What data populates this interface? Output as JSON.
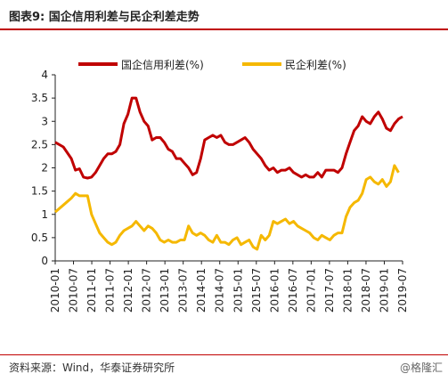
{
  "title": "图表9:  国企信用利差与民企利差走势",
  "source": "资料来源：Wind，华泰证券研究所",
  "watermark": "@格隆汇",
  "chart_data": {
    "type": "line",
    "ylim": [
      0,
      4
    ],
    "yticks": [
      "0",
      "0.5",
      "1",
      "1.5",
      "2",
      "2.5",
      "3",
      "3.5",
      "4"
    ],
    "xticks": [
      "2010-01",
      "2010-07",
      "2011-01",
      "2011-07",
      "2012-01",
      "2012-07",
      "2013-01",
      "2013-07",
      "2014-01",
      "2014-07",
      "2015-01",
      "2015-07",
      "2016-01",
      "2016-07",
      "2017-01",
      "2017-07",
      "2018-01",
      "2018-07",
      "2019-01",
      "2019-07"
    ],
    "series": [
      {
        "name": "国企信用利差(%)",
        "color": "#c00000",
        "points": [
          [
            0,
            2.55
          ],
          [
            2,
            2.45
          ],
          [
            4,
            2.2
          ],
          [
            5,
            1.95
          ],
          [
            6,
            1.98
          ],
          [
            7,
            1.8
          ],
          [
            8,
            1.78
          ],
          [
            9,
            1.8
          ],
          [
            10,
            1.9
          ],
          [
            11,
            2.05
          ],
          [
            12,
            2.2
          ],
          [
            13,
            2.3
          ],
          [
            14,
            2.3
          ],
          [
            15,
            2.35
          ],
          [
            16,
            2.5
          ],
          [
            17,
            2.95
          ],
          [
            18,
            3.15
          ],
          [
            19,
            3.5
          ],
          [
            20,
            3.5
          ],
          [
            21,
            3.2
          ],
          [
            22,
            3.0
          ],
          [
            23,
            2.9
          ],
          [
            24,
            2.6
          ],
          [
            25,
            2.65
          ],
          [
            26,
            2.65
          ],
          [
            27,
            2.55
          ],
          [
            28,
            2.4
          ],
          [
            29,
            2.35
          ],
          [
            30,
            2.2
          ],
          [
            31,
            2.2
          ],
          [
            32,
            2.1
          ],
          [
            33,
            2.0
          ],
          [
            34,
            1.85
          ],
          [
            35,
            1.9
          ],
          [
            36,
            2.2
          ],
          [
            37,
            2.6
          ],
          [
            38,
            2.65
          ],
          [
            39,
            2.7
          ],
          [
            40,
            2.65
          ],
          [
            41,
            2.7
          ],
          [
            42,
            2.55
          ],
          [
            43,
            2.5
          ],
          [
            44,
            2.5
          ],
          [
            45,
            2.55
          ],
          [
            46,
            2.6
          ],
          [
            47,
            2.65
          ],
          [
            48,
            2.55
          ],
          [
            49,
            2.4
          ],
          [
            50,
            2.3
          ],
          [
            51,
            2.2
          ],
          [
            52,
            2.05
          ],
          [
            53,
            1.95
          ],
          [
            54,
            2.0
          ],
          [
            55,
            1.9
          ],
          [
            56,
            1.95
          ],
          [
            57,
            1.95
          ],
          [
            58,
            2.0
          ],
          [
            59,
            1.9
          ],
          [
            60,
            1.85
          ],
          [
            61,
            1.8
          ],
          [
            62,
            1.85
          ],
          [
            63,
            1.8
          ],
          [
            64,
            1.8
          ],
          [
            65,
            1.9
          ],
          [
            66,
            1.8
          ],
          [
            67,
            1.95
          ],
          [
            68,
            1.95
          ],
          [
            69,
            1.95
          ],
          [
            70,
            1.9
          ],
          [
            71,
            2.0
          ],
          [
            72,
            2.3
          ],
          [
            73,
            2.55
          ],
          [
            74,
            2.8
          ],
          [
            75,
            2.9
          ],
          [
            76,
            3.1
          ],
          [
            77,
            3.0
          ],
          [
            78,
            2.95
          ],
          [
            79,
            3.1
          ],
          [
            80,
            3.2
          ],
          [
            81,
            3.05
          ],
          [
            82,
            2.85
          ],
          [
            83,
            2.8
          ],
          [
            84,
            2.95
          ],
          [
            85,
            3.05
          ],
          [
            86,
            3.1
          ]
        ]
      },
      {
        "name": "民企利差(%)",
        "color": "#f5b800",
        "points": [
          [
            0,
            1.05
          ],
          [
            2,
            1.2
          ],
          [
            4,
            1.35
          ],
          [
            5,
            1.45
          ],
          [
            6,
            1.4
          ],
          [
            7,
            1.4
          ],
          [
            8,
            1.4
          ],
          [
            9,
            1.0
          ],
          [
            10,
            0.8
          ],
          [
            11,
            0.6
          ],
          [
            12,
            0.5
          ],
          [
            13,
            0.4
          ],
          [
            14,
            0.35
          ],
          [
            15,
            0.4
          ],
          [
            16,
            0.55
          ],
          [
            17,
            0.65
          ],
          [
            18,
            0.7
          ],
          [
            19,
            0.75
          ],
          [
            20,
            0.85
          ],
          [
            21,
            0.75
          ],
          [
            22,
            0.65
          ],
          [
            23,
            0.75
          ],
          [
            24,
            0.7
          ],
          [
            25,
            0.6
          ],
          [
            26,
            0.45
          ],
          [
            27,
            0.4
          ],
          [
            28,
            0.45
          ],
          [
            29,
            0.4
          ],
          [
            30,
            0.4
          ],
          [
            31,
            0.45
          ],
          [
            32,
            0.45
          ],
          [
            33,
            0.75
          ],
          [
            34,
            0.6
          ],
          [
            35,
            0.55
          ],
          [
            36,
            0.6
          ],
          [
            37,
            0.55
          ],
          [
            38,
            0.45
          ],
          [
            39,
            0.4
          ],
          [
            40,
            0.55
          ],
          [
            41,
            0.4
          ],
          [
            42,
            0.4
          ],
          [
            43,
            0.35
          ],
          [
            44,
            0.45
          ],
          [
            45,
            0.5
          ],
          [
            46,
            0.35
          ],
          [
            47,
            0.4
          ],
          [
            48,
            0.45
          ],
          [
            49,
            0.3
          ],
          [
            50,
            0.25
          ],
          [
            51,
            0.55
          ],
          [
            52,
            0.45
          ],
          [
            53,
            0.55
          ],
          [
            54,
            0.85
          ],
          [
            55,
            0.8
          ],
          [
            56,
            0.85
          ],
          [
            57,
            0.9
          ],
          [
            58,
            0.8
          ],
          [
            59,
            0.85
          ],
          [
            60,
            0.75
          ],
          [
            61,
            0.7
          ],
          [
            62,
            0.65
          ],
          [
            63,
            0.6
          ],
          [
            64,
            0.5
          ],
          [
            65,
            0.45
          ],
          [
            66,
            0.55
          ],
          [
            67,
            0.5
          ],
          [
            68,
            0.45
          ],
          [
            69,
            0.55
          ],
          [
            70,
            0.6
          ],
          [
            71,
            0.6
          ],
          [
            72,
            0.95
          ],
          [
            73,
            1.15
          ],
          [
            74,
            1.25
          ],
          [
            75,
            1.3
          ],
          [
            76,
            1.45
          ],
          [
            77,
            1.75
          ],
          [
            78,
            1.8
          ],
          [
            79,
            1.7
          ],
          [
            80,
            1.65
          ],
          [
            81,
            1.75
          ],
          [
            82,
            1.6
          ],
          [
            83,
            1.7
          ],
          [
            84,
            2.05
          ],
          [
            85,
            1.9
          ]
        ]
      }
    ]
  }
}
